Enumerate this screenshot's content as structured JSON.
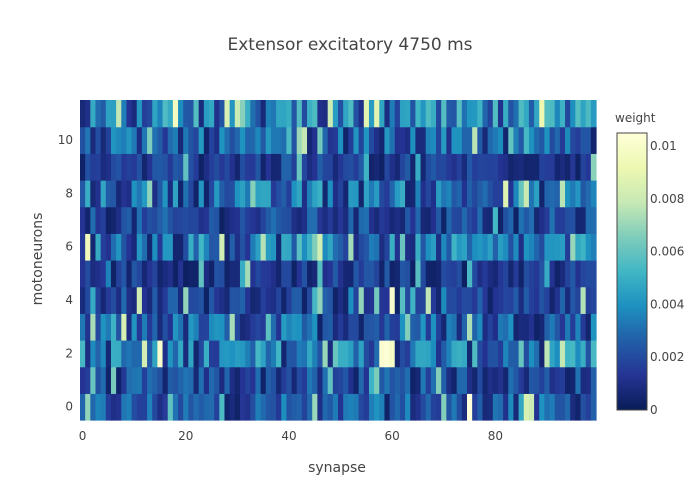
{
  "chart_data": {
    "type": "heatmap",
    "title": "Extensor excitatory 4750 ms",
    "xlabel": "synapse",
    "ylabel": "motoneurons",
    "xlim": [
      -0.5,
      99.5
    ],
    "ylim": [
      -0.5,
      11.5
    ],
    "x_count": 100,
    "y_count": 12,
    "x_ticks": [
      0,
      20,
      40,
      60,
      80
    ],
    "y_ticks": [
      0,
      2,
      4,
      6,
      8,
      10
    ],
    "colorbar": {
      "title": "weight",
      "min": 0,
      "max": 0.0105,
      "ticks": [
        0,
        0.002,
        0.004,
        0.006,
        0.008,
        0.01
      ],
      "tick_labels": [
        "0",
        "0.002",
        "0.004",
        "0.006",
        "0.008",
        "0.01"
      ],
      "colorscale": [
        "#081d58",
        "#253494",
        "#225ea8",
        "#1d91c0",
        "#41b6c4",
        "#7fcdbb",
        "#c7e9b4",
        "#edf8b1",
        "#ffffd9"
      ]
    },
    "row_mean_weight": [
      0.0022,
      0.0018,
      0.003,
      0.0024,
      0.0016,
      0.0014,
      0.0028,
      0.0017,
      0.0026,
      0.0015,
      0.0023,
      0.0031
    ],
    "highlights": [
      {
        "x": 1,
        "y": 6,
        "value": 0.0095
      },
      {
        "x": 58,
        "y": 2,
        "value": 0.0102
      },
      {
        "x": 59,
        "y": 2,
        "value": 0.0104
      },
      {
        "x": 60,
        "y": 2,
        "value": 0.0098
      },
      {
        "x": 60,
        "y": 4,
        "value": 0.01
      },
      {
        "x": 75,
        "y": 0,
        "value": 0.0105
      },
      {
        "x": 86,
        "y": 0,
        "value": 0.0085
      },
      {
        "x": 87,
        "y": 0,
        "value": 0.008
      },
      {
        "x": 28,
        "y": 11,
        "value": 0.0085
      },
      {
        "x": 7,
        "y": 11,
        "value": 0.0078
      },
      {
        "x": 11,
        "y": 4,
        "value": 0.0082
      },
      {
        "x": 8,
        "y": 3,
        "value": 0.0084
      },
      {
        "x": 27,
        "y": 6,
        "value": 0.0082
      },
      {
        "x": 67,
        "y": 4,
        "value": 0.0078
      },
      {
        "x": 97,
        "y": 4,
        "value": 0.0075
      },
      {
        "x": 47,
        "y": 2,
        "value": 0.007
      },
      {
        "x": 52,
        "y": 6,
        "value": 0.0072
      },
      {
        "x": 75,
        "y": 3,
        "value": 0.0074
      },
      {
        "x": 95,
        "y": 6,
        "value": 0.007
      }
    ]
  }
}
